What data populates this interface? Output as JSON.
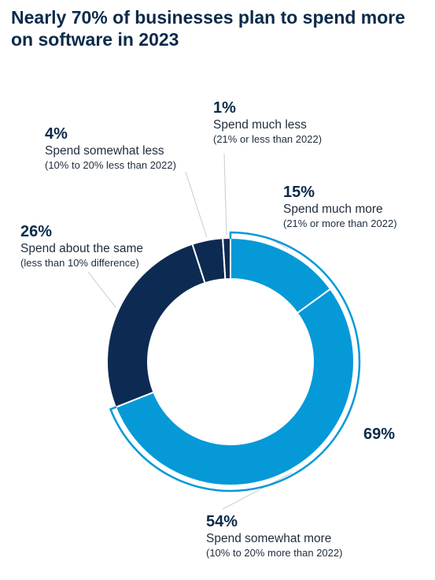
{
  "title": "Nearly 70% of businesses plan to spend more on software in 2023",
  "chart_data": {
    "type": "pie",
    "variant": "donut",
    "slices": [
      {
        "pct_label": "15%",
        "value": 15,
        "label": "Spend much more",
        "sublabel": "(21% or more than 2022)",
        "color": "#0599d8"
      },
      {
        "pct_label": "54%",
        "value": 54,
        "label": "Spend somewhat more",
        "sublabel": "(10% to 20% more than 2022)",
        "color": "#0599d8"
      },
      {
        "pct_label": "26%",
        "value": 26,
        "label": "Spend about the same",
        "sublabel": "(less than 10% difference)",
        "color": "#0d2b52"
      },
      {
        "pct_label": "4%",
        "value": 4,
        "label": "Spend somewhat less",
        "sublabel": "(10% to 20% less than 2022)",
        "color": "#0d2b52"
      },
      {
        "pct_label": "1%",
        "value": 1,
        "label": "Spend much less",
        "sublabel": "(21% or less than 2022)",
        "color": "#0d2b52"
      }
    ],
    "group_annotation": {
      "label": "69%",
      "value": 69,
      "color": "#0599d8"
    }
  }
}
